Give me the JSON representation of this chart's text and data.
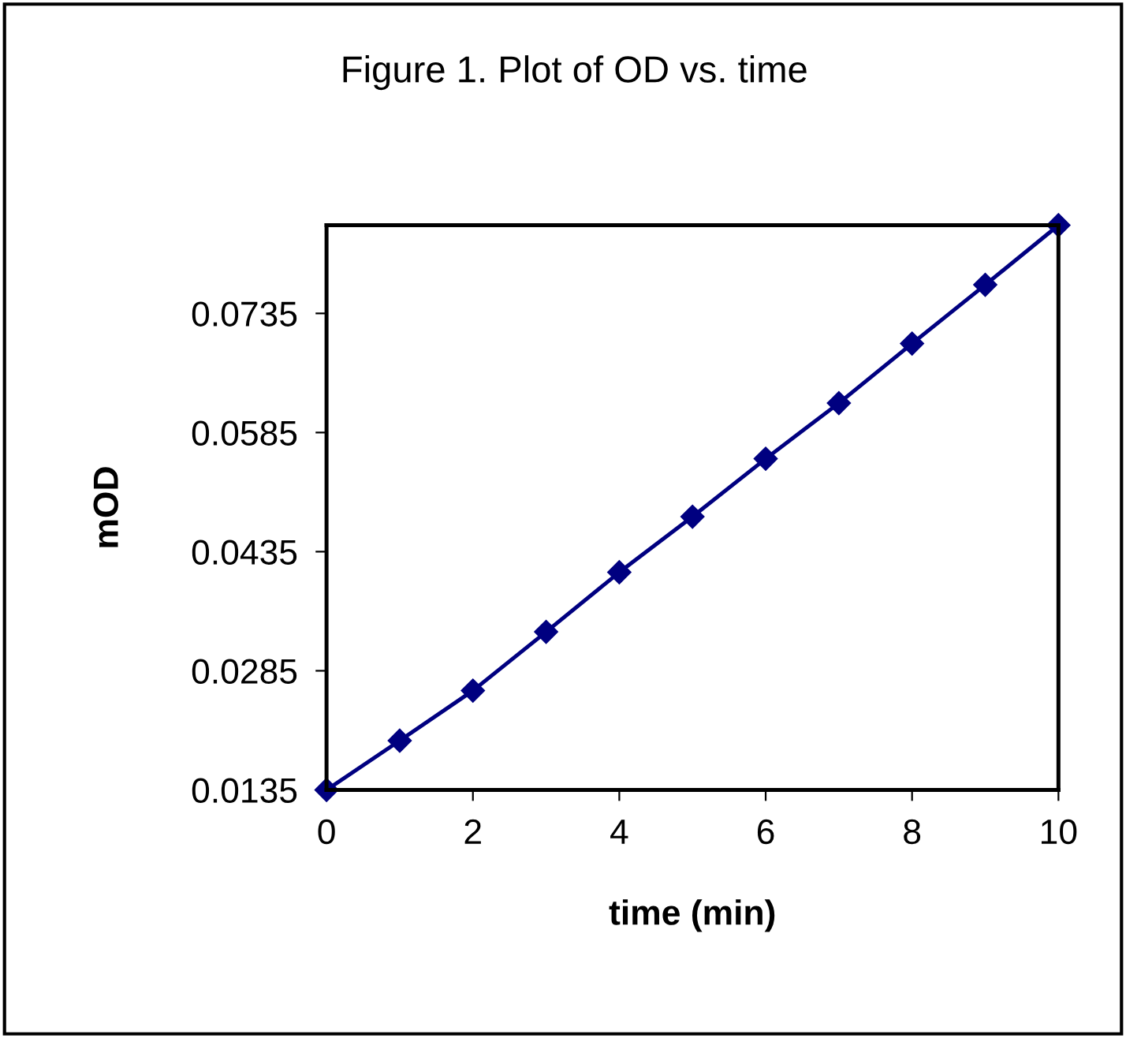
{
  "chart_data": {
    "type": "line",
    "title": "Figure 1. Plot of OD vs. time",
    "xlabel": "time (min)",
    "ylabel": "mOD",
    "x": [
      0,
      1,
      2,
      3,
      4,
      5,
      6,
      7,
      8,
      9,
      10
    ],
    "series": [
      {
        "color": "#000080",
        "values": [
          0.0135,
          0.0197,
          0.026,
          0.0334,
          0.0409,
          0.0479,
          0.0552,
          0.0622,
          0.0697,
          0.0771,
          0.0846
        ]
      }
    ],
    "xlim": [
      0,
      10
    ],
    "xticks": [
      0,
      2,
      4,
      6,
      8,
      10
    ],
    "ylim": [
      0.0135,
      0.0846
    ],
    "yticks": [
      0.0135,
      0.0285,
      0.0435,
      0.0585,
      0.0735
    ],
    "grid": false,
    "legend": false,
    "marker": "diamond",
    "line_style": "solid"
  }
}
